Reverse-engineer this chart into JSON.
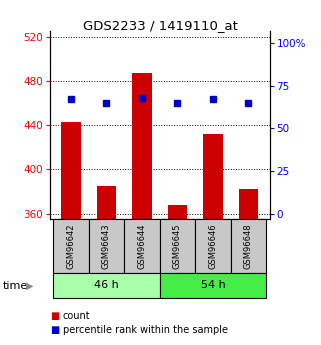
{
  "title": "GDS2233 / 1419110_at",
  "categories": [
    "GSM96642",
    "GSM96643",
    "GSM96644",
    "GSM96645",
    "GSM96646",
    "GSM96648"
  ],
  "bar_values": [
    443,
    385,
    487,
    368,
    432,
    382
  ],
  "dot_values": [
    67,
    65,
    68,
    65,
    67,
    65
  ],
  "bar_color": "#cc0000",
  "dot_color": "#0000cc",
  "ylim_left": [
    355,
    525
  ],
  "ylim_right": [
    -3,
    107
  ],
  "yticks_left": [
    360,
    400,
    440,
    480,
    520
  ],
  "yticks_right": [
    0,
    25,
    50,
    75,
    100
  ],
  "ytick_labels_right": [
    "0",
    "25",
    "50",
    "75",
    "100%"
  ],
  "group1_label": "46 h",
  "group2_label": "54 h",
  "group1_indices": [
    0,
    1,
    2
  ],
  "group2_indices": [
    3,
    4,
    5
  ],
  "group1_color": "#aaffaa",
  "group2_color": "#44ee44",
  "time_label": "time",
  "legend_items": [
    "count",
    "percentile rank within the sample"
  ],
  "legend_colors": [
    "#cc0000",
    "#0000cc"
  ],
  "bar_width": 0.55
}
